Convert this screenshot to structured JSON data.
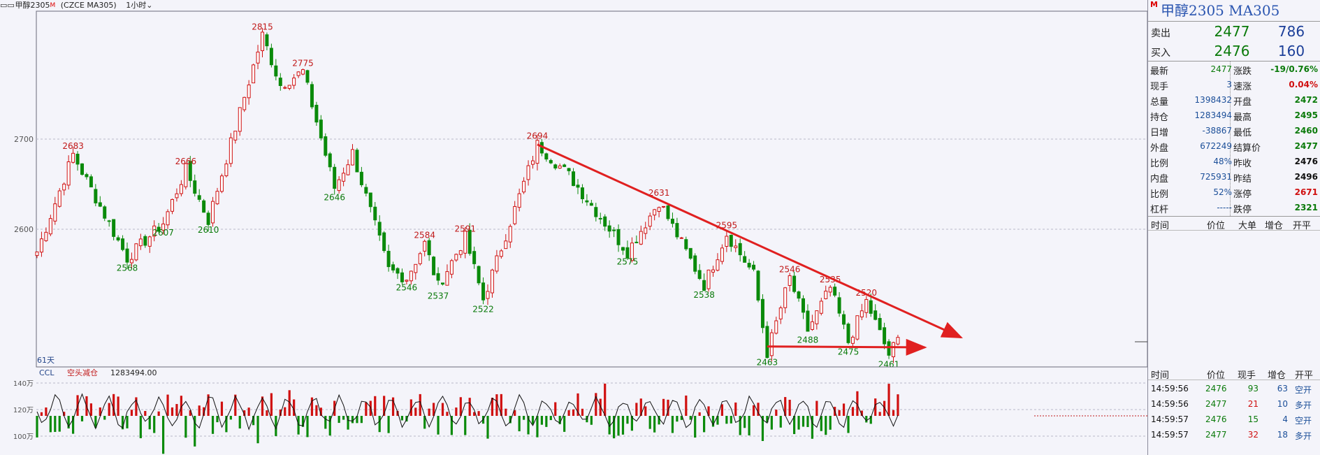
{
  "titlebar": {
    "symbol": "甲醇2305",
    "flag": "M",
    "code": "(CZCE MA305)",
    "period": "1小时"
  },
  "instrument": {
    "flag": "M",
    "name": "甲醇2305 MA305"
  },
  "orderbook": {
    "ask": {
      "label": "卖出",
      "price": "2477",
      "volume": "786"
    },
    "bid": {
      "label": "买入",
      "price": "2476",
      "volume": "160"
    }
  },
  "quote": [
    {
      "l1": "最新",
      "v1": "2477",
      "c1": "green",
      "l2": "涨跌",
      "v2": "-19/0.76%",
      "c2": "green"
    },
    {
      "l1": "现手",
      "v1": "3",
      "c1": "blue",
      "l2": "速涨",
      "v2": "0.04%",
      "c2": "red"
    },
    {
      "l1": "总量",
      "v1": "1398432",
      "c1": "blue",
      "l2": "开盘",
      "v2": "2472",
      "c2": "green"
    },
    {
      "l1": "持仓",
      "v1": "1283494",
      "c1": "blue",
      "l2": "最高",
      "v2": "2495",
      "c2": "green"
    },
    {
      "l1": "日增",
      "v1": "-38867",
      "c1": "blue",
      "l2": "最低",
      "v2": "2460",
      "c2": "green"
    },
    {
      "l1": "外盘",
      "v1": "672249",
      "c1": "blue",
      "l2": "结算价",
      "v2": "2477",
      "c2": "green"
    },
    {
      "l1": "比例",
      "v1": "48%",
      "c1": "blue",
      "l2": "昨收",
      "v2": "2476",
      "c2": "black"
    },
    {
      "l1": "内盘",
      "v1": "725931",
      "c1": "blue",
      "l2": "昨结",
      "v2": "2496",
      "c2": "black"
    },
    {
      "l1": "比例",
      "v1": "52%",
      "c1": "blue",
      "l2": "涨停",
      "v2": "2671",
      "c2": "red"
    },
    {
      "l1": "杠杆",
      "v1": "-----",
      "c1": "blue",
      "l2": "跌停",
      "v2": "2321",
      "c2": "green"
    }
  ],
  "ticks_header": {
    "time": "时间",
    "price": "价位",
    "big": "大单",
    "inc": "增仓",
    "open": "开平"
  },
  "trades_header": {
    "time": "时间",
    "price": "价位",
    "qty": "现手",
    "inc": "增仓",
    "open": "开平"
  },
  "trades": [
    {
      "time": "14:59:56",
      "price": "2476",
      "qty": "93",
      "inc": "63",
      "type": "空开"
    },
    {
      "time": "14:59:56",
      "price": "2477",
      "qty": "21",
      "inc": "10",
      "type": "多开"
    },
    {
      "time": "14:59:57",
      "price": "2476",
      "qty": "15",
      "inc": "4",
      "type": "空开"
    },
    {
      "time": "14:59:57",
      "price": "2477",
      "qty": "32",
      "inc": "18",
      "type": "多开"
    }
  ],
  "chart_data": [
    {
      "type": "candlestick",
      "title": "甲醇2305 (CZCE MA305) 1小时",
      "yticks": [
        2600,
        2700
      ],
      "ylim": [
        2455,
        2840
      ],
      "span_label": "61天",
      "pivots": [
        {
          "i": 0,
          "v": 2575
        },
        {
          "i": 8,
          "v": 2683,
          "label": "2683",
          "hi": true
        },
        {
          "i": 20,
          "v": 2568,
          "label": "2568",
          "hi": false
        },
        {
          "i": 28,
          "v": 2607,
          "label": "2607",
          "hi": false
        },
        {
          "i": 33,
          "v": 2666,
          "label": "2666",
          "hi": true
        },
        {
          "i": 38,
          "v": 2610,
          "label": "2610",
          "hi": false
        },
        {
          "i": 50,
          "v": 2815,
          "label": "2815",
          "hi": true
        },
        {
          "i": 54,
          "v": 2760
        },
        {
          "i": 59,
          "v": 2775,
          "label": "2775",
          "hi": true
        },
        {
          "i": 66,
          "v": 2646,
          "label": "2646",
          "hi": false
        },
        {
          "i": 70,
          "v": 2685
        },
        {
          "i": 78,
          "v": 2555
        },
        {
          "i": 82,
          "v": 2546,
          "label": "2546",
          "hi": false
        },
        {
          "i": 86,
          "v": 2584,
          "label": "2584",
          "hi": true
        },
        {
          "i": 89,
          "v": 2537,
          "label": "2537",
          "hi": false
        },
        {
          "i": 95,
          "v": 2591,
          "label": "2591",
          "hi": true
        },
        {
          "i": 99,
          "v": 2522,
          "label": "2522",
          "hi": false
        },
        {
          "i": 111,
          "v": 2694,
          "label": "2694",
          "hi": true
        },
        {
          "i": 118,
          "v": 2660
        },
        {
          "i": 124,
          "v": 2620
        },
        {
          "i": 131,
          "v": 2575,
          "label": "2575",
          "hi": false
        },
        {
          "i": 138,
          "v": 2631,
          "label": "2631",
          "hi": true
        },
        {
          "i": 148,
          "v": 2538,
          "label": "2538",
          "hi": false
        },
        {
          "i": 153,
          "v": 2595,
          "label": "2595",
          "hi": true
        },
        {
          "i": 159,
          "v": 2550
        },
        {
          "i": 162,
          "v": 2463,
          "label": "2463",
          "hi": false
        },
        {
          "i": 167,
          "v": 2546,
          "label": "2546",
          "hi": true
        },
        {
          "i": 171,
          "v": 2488,
          "label": "2488",
          "hi": false
        },
        {
          "i": 176,
          "v": 2535,
          "label": "2535",
          "hi": true
        },
        {
          "i": 180,
          "v": 2475,
          "label": "2475",
          "hi": false
        },
        {
          "i": 184,
          "v": 2520,
          "label": "2520",
          "hi": true
        },
        {
          "i": 189,
          "v": 2461,
          "label": "2461",
          "hi": false
        },
        {
          "i": 191,
          "v": 2477
        }
      ],
      "bar_count": 192,
      "trendlines": [
        {
          "from": [
            111,
            2694
          ],
          "to": [
            205,
            2480
          ],
          "arrow": true
        },
        {
          "from": [
            162,
            2470
          ],
          "to": [
            197,
            2469
          ],
          "arrow": true
        }
      ]
    },
    {
      "type": "bar",
      "title": "CCL",
      "legend": "空头减仓",
      "value": "1283494.00",
      "yticks": [
        "140万",
        "120万",
        "100万"
      ]
    }
  ],
  "colors": {
    "up": "#d01010",
    "down": "#0a8a0a",
    "grid": "#b8b8c8",
    "trend": "#e02020"
  }
}
